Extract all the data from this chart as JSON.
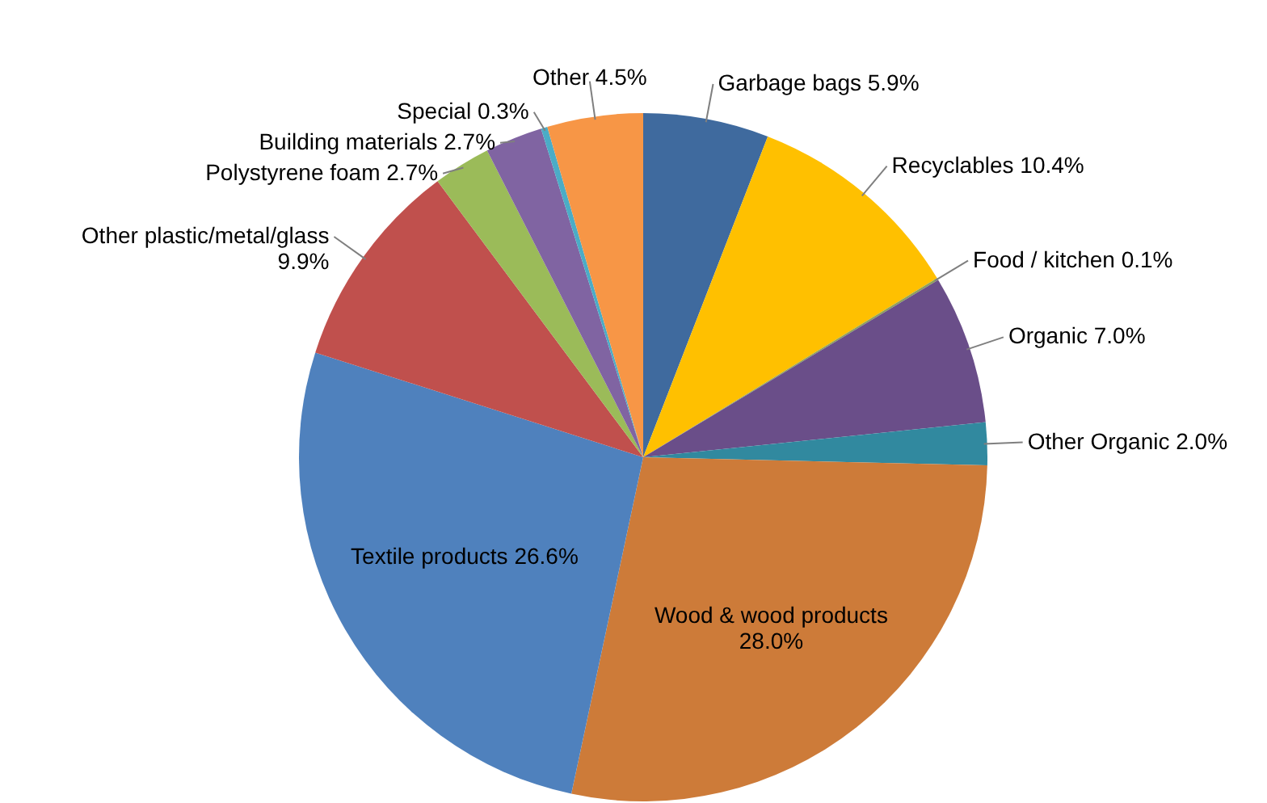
{
  "chart_data": {
    "type": "pie",
    "categories": [
      "Garbage bags",
      "Recyclables",
      "Food / kitchen",
      "Organic",
      "Other Organic",
      "Wood & wood products",
      "Textile products",
      "Other plastic/metal/glass",
      "Polystyrene foam",
      "Building materials",
      "Special",
      "Other"
    ],
    "values": [
      5.9,
      10.4,
      0.1,
      7.0,
      2.0,
      28.0,
      26.6,
      9.9,
      2.7,
      2.7,
      0.3,
      4.5
    ],
    "value_labels": [
      "5.9%",
      "10.4%",
      "0.1%",
      "7.0%",
      "2.0%",
      "28.0%",
      "26.6%",
      "9.9%",
      "2.7%",
      "2.7%",
      "0.3%",
      "4.5%"
    ],
    "colors": [
      "#3f6a9e",
      "#ffc000",
      "#8ea05a",
      "#6a4e89",
      "#31899f",
      "#cd7b39",
      "#4f81bd",
      "#c0504d",
      "#9bbb59",
      "#8064a2",
      "#4bacc6",
      "#f79646"
    ]
  }
}
